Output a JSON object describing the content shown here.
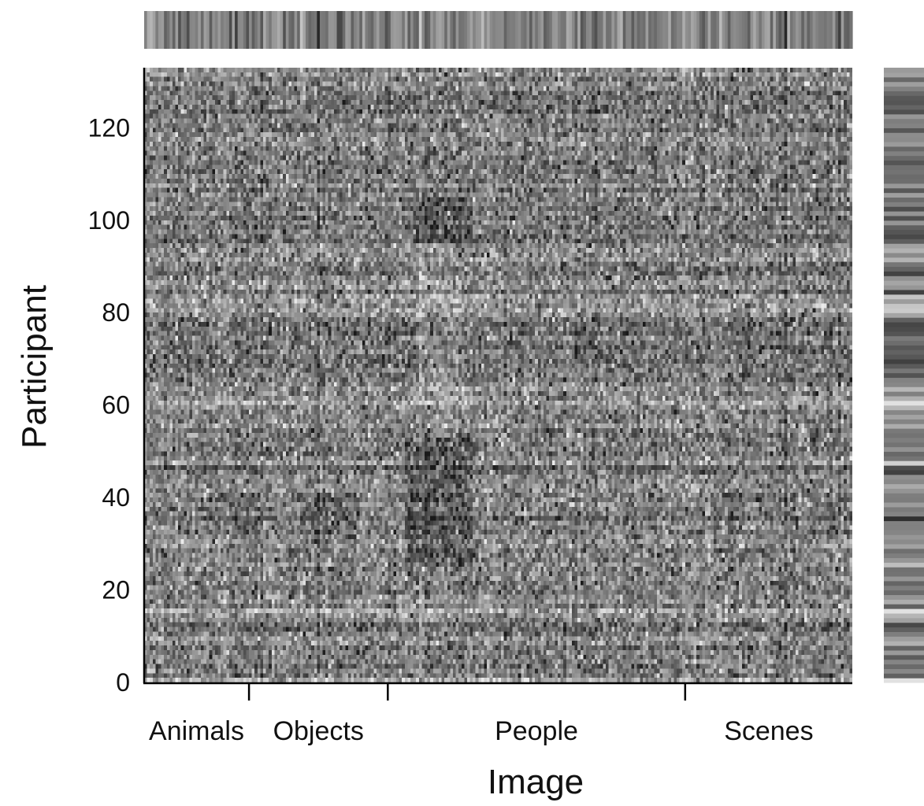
{
  "chart_data": {
    "type": "heatmap",
    "colormap": "grayscale",
    "xlabel": "Image",
    "ylabel": "Participant",
    "ylim": [
      0,
      133
    ],
    "yticks": [
      "0",
      "20",
      "40",
      "60",
      "80",
      "100",
      "120"
    ],
    "x_count": 250,
    "y_count": 133,
    "categories": [
      {
        "label": "Animals",
        "start": 0,
        "end": 37
      },
      {
        "label": "Objects",
        "start": 37,
        "end": 86
      },
      {
        "label": "People",
        "start": 86,
        "end": 191
      },
      {
        "label": "Scenes",
        "start": 191,
        "end": 250
      }
    ],
    "category_boundaries": [
      37,
      86,
      191
    ],
    "marginals": {
      "top": "per-image mean strip",
      "right": "per-participant mean strip"
    },
    "grid": false,
    "legend": "none"
  }
}
